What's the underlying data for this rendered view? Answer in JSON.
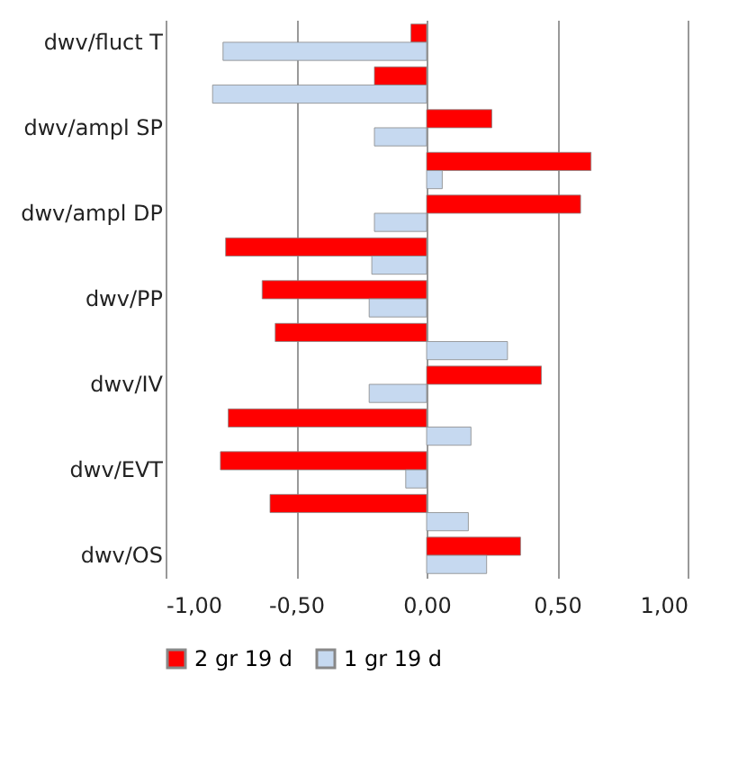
{
  "chart_data": {
    "type": "bar",
    "orientation": "horizontal",
    "categories": [
      "dwv/fluct T",
      null,
      "dwv/ampl SP",
      null,
      "dwv/ampl DP",
      null,
      "dwv/PP",
      null,
      "dwv/IV",
      null,
      "dwv/EVT",
      null,
      "dwv/OS"
    ],
    "series": [
      {
        "name": "2 gr 19 d",
        "color": "#ff0000",
        "values": [
          -0.06,
          -0.2,
          0.25,
          0.63,
          0.59,
          -0.77,
          -0.63,
          -0.58,
          0.44,
          -0.76,
          -0.79,
          -0.6,
          0.36
        ]
      },
      {
        "name": "1 gr 19 d",
        "color": "#c6d9f0",
        "values": [
          -0.78,
          -0.82,
          -0.2,
          0.06,
          -0.2,
          -0.21,
          -0.22,
          0.31,
          -0.22,
          0.17,
          -0.08,
          0.16,
          0.23
        ]
      }
    ],
    "xlim": [
      -1,
      1
    ],
    "xticks": [
      {
        "value": -1,
        "label": "-1,00"
      },
      {
        "value": -0.5,
        "label": "-0,50"
      },
      {
        "value": 0,
        "label": "0,00"
      },
      {
        "value": 0.5,
        "label": "0,50"
      },
      {
        "value": 1,
        "label": "1,00"
      }
    ],
    "grid": "x",
    "legend": "bottom"
  }
}
